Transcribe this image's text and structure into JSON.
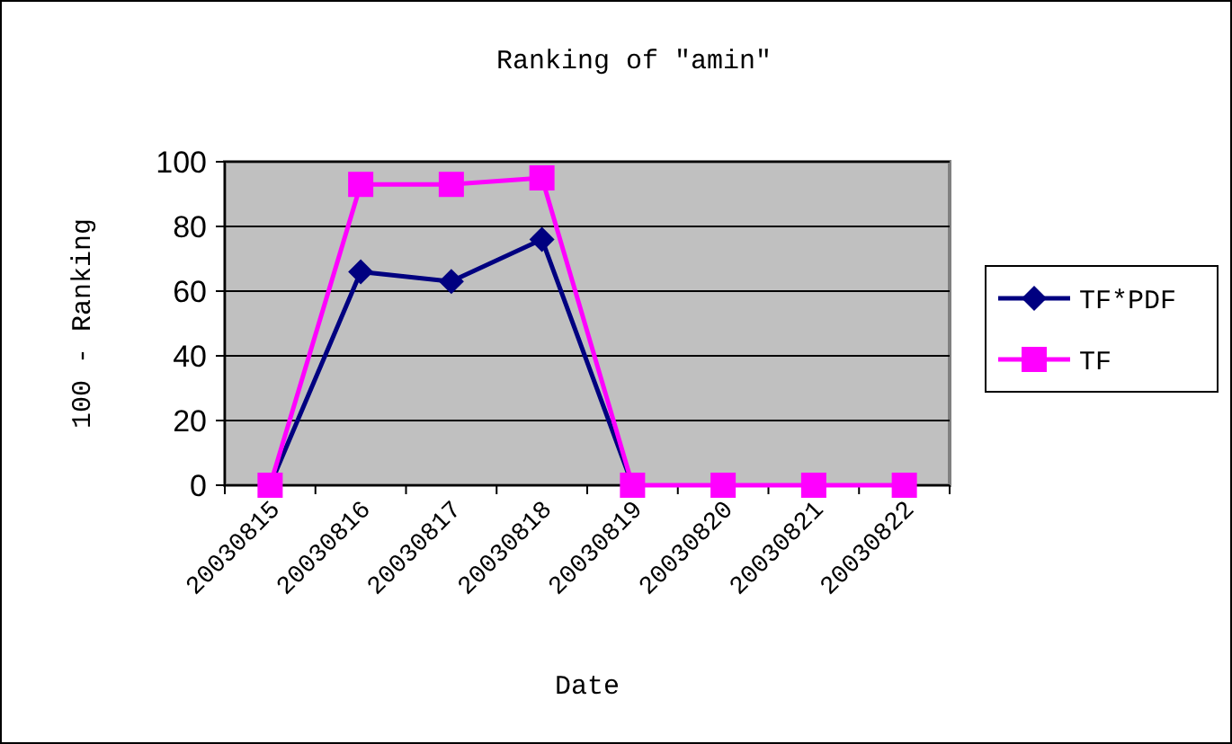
{
  "chart_data": {
    "type": "line",
    "title": "Ranking of \"amin\"",
    "xlabel": "Date",
    "ylabel": "100 - Ranking",
    "categories": [
      "20030815",
      "20030816",
      "20030817",
      "20030818",
      "20030819",
      "20030820",
      "20030821",
      "20030822"
    ],
    "series": [
      {
        "name": "TF*PDF",
        "color": "#000080",
        "marker": "diamond",
        "values": [
          0,
          66,
          63,
          76,
          0,
          null,
          null,
          null
        ]
      },
      {
        "name": "TF",
        "color": "#ff00ff",
        "marker": "square",
        "values": [
          0,
          93,
          93,
          95,
          0,
          0,
          0,
          0
        ]
      }
    ],
    "ylim": [
      0,
      100
    ],
    "yticks": [
      0,
      20,
      40,
      60,
      80,
      100
    ],
    "grid": "y",
    "legend": "right"
  }
}
